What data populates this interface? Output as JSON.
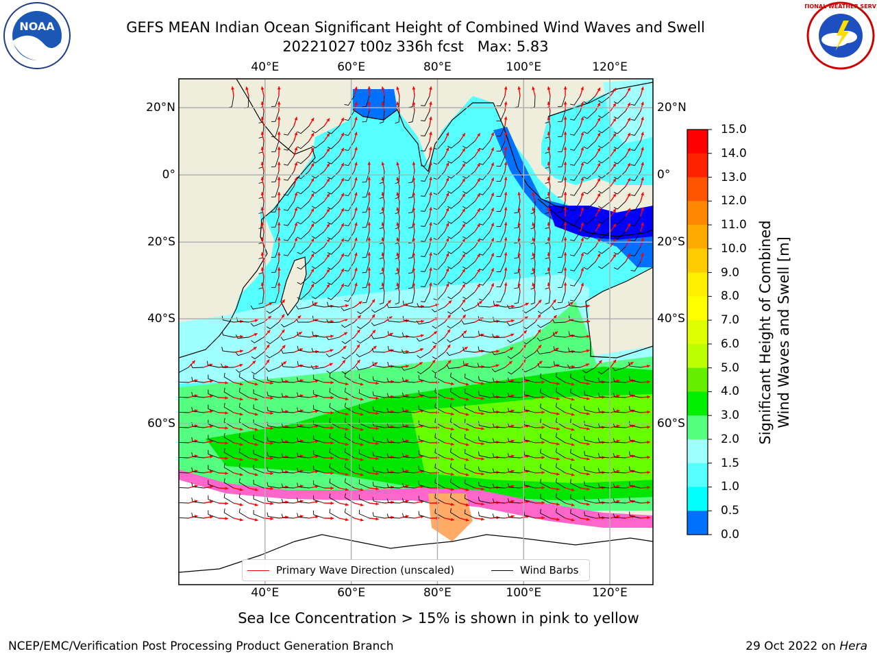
{
  "title": {
    "line1": "GEFS MEAN Indian Ocean Significant Height of Combined Wind Waves and Swell",
    "line2": "20221027 t00z 336h fcst   Max: 5.83"
  },
  "map": {
    "lon_labels": [
      "40°E",
      "60°E",
      "80°E",
      "100°E",
      "120°E"
    ],
    "lon_values": [
      40,
      60,
      80,
      100,
      120
    ],
    "lat_labels": [
      "20°N",
      "0°",
      "20°S",
      "40°S",
      "60°S"
    ],
    "lat_values": [
      20,
      0,
      -20,
      -40,
      -60
    ],
    "extent": {
      "lon_min": 20,
      "lon_max": 130,
      "lat_min": -77,
      "lat_max": 28
    },
    "land_color": "#efeddc",
    "ocean_colors": [
      "#0000ff",
      "#0070ff",
      "#00ffff",
      "#55ffff",
      "#a0ffff",
      "#55ff80",
      "#00e600",
      "#66ff00"
    ],
    "ice_colors": [
      "#ff66cc",
      "#ffaa66",
      "#ffdd44",
      "#ffffff"
    ]
  },
  "colorbar": {
    "tick_labels": [
      "15.0",
      "14.0",
      "13.0",
      "12.0",
      "11.0",
      "10.0",
      "9.0",
      "8.0",
      "7.0",
      "6.0",
      "5.0",
      "4.0",
      "3.0",
      "2.0",
      "1.5",
      "1.0",
      "0.5",
      "0.0"
    ],
    "colors": [
      "#ff0000",
      "#ff2200",
      "#ff5500",
      "#ff8800",
      "#ffaa00",
      "#ffcc00",
      "#ffee00",
      "#ffff00",
      "#ddff00",
      "#bbff00",
      "#66ee00",
      "#00ee00",
      "#55ff80",
      "#a0ffff",
      "#55ffff",
      "#00ffff",
      "#0070ff",
      "#0000ff"
    ],
    "label_line1": "Significant Height of Combined",
    "label_line2": "Wind Waves and Swell [m]"
  },
  "legend": {
    "wave_label": "Primary Wave Direction (unscaled)",
    "wave_color": "#ff0000",
    "barb_label": "Wind Barbs",
    "barb_color": "#000000"
  },
  "ice_note": "Sea Ice Concentration > 15% is shown in pink to yellow",
  "footer": {
    "left": "NCEP/EMC/Verification Post Processing Product Generation Branch",
    "right_prefix": "29 Oct 2022 on ",
    "right_host": "Hera"
  },
  "logos": {
    "noaa_text": "NOAA",
    "nws_text": "NATIONAL WEATHER SERVICE"
  }
}
